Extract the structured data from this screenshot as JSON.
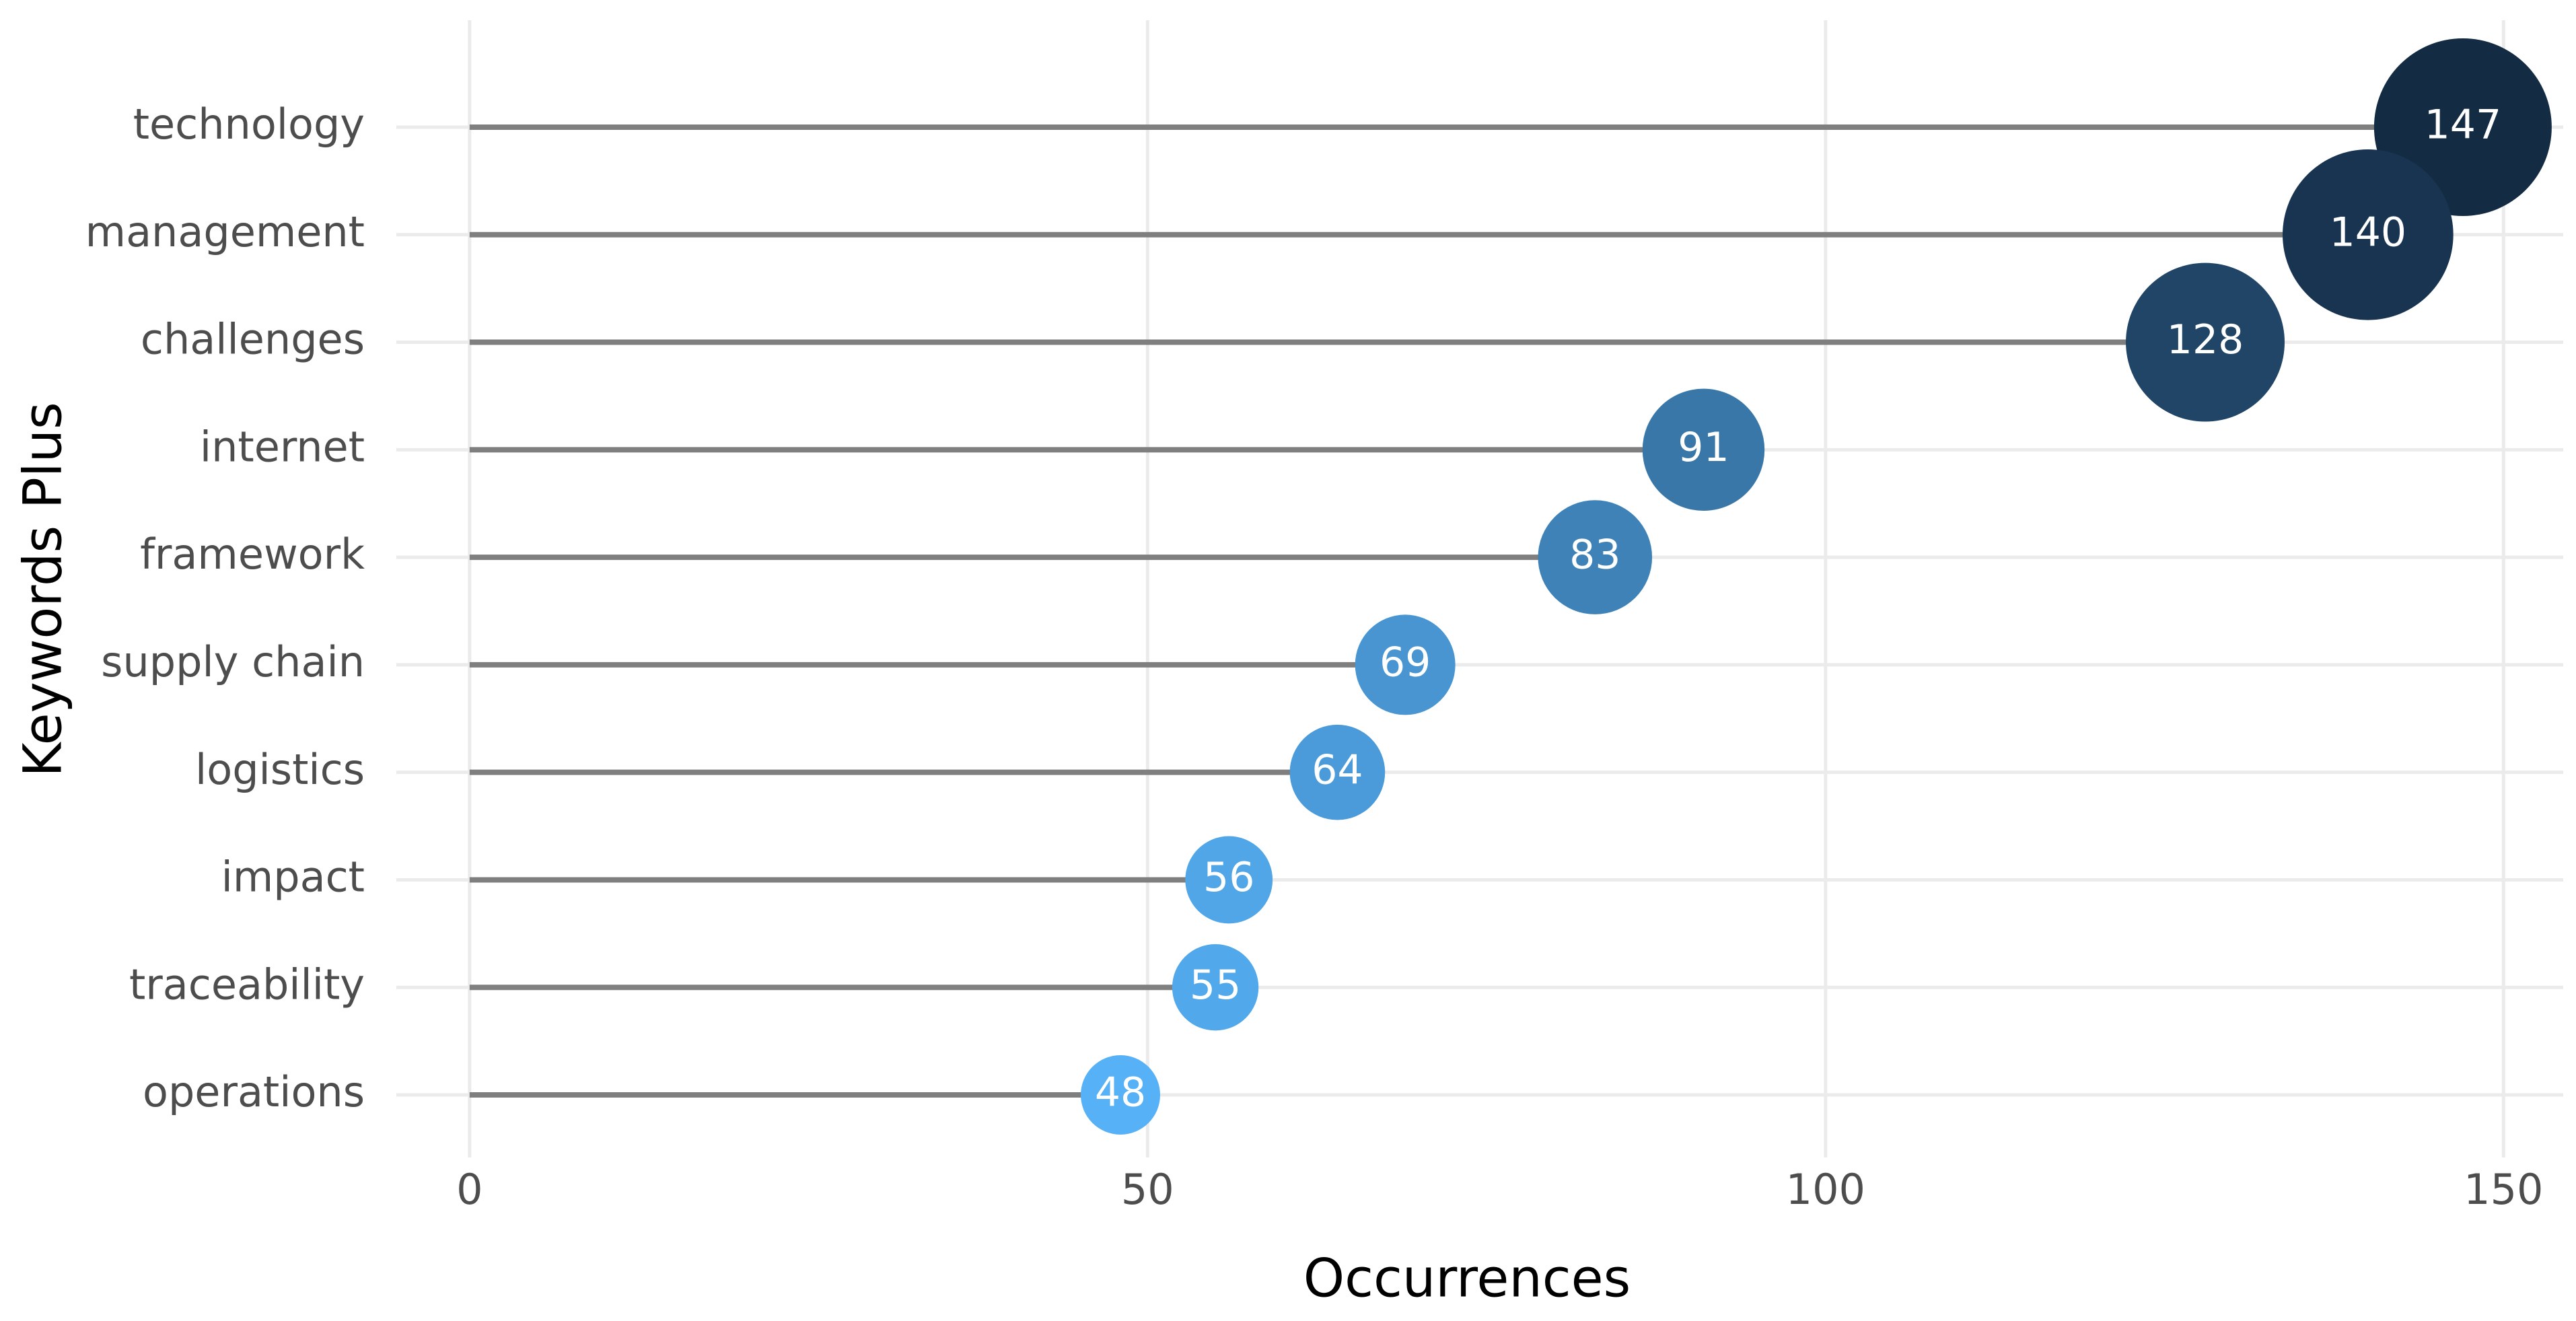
{
  "chart_data": {
    "type": "lollipop",
    "x_label": "Occurrences",
    "y_label": "Keywords Plus",
    "categories": [
      "technology",
      "management",
      "challenges",
      "internet",
      "framework",
      "supply chain",
      "logistics",
      "impact",
      "traceability",
      "operations"
    ],
    "values": [
      147,
      140,
      128,
      91,
      83,
      69,
      64,
      56,
      55,
      48
    ],
    "xlim": [
      -5.4,
      154.4
    ],
    "xticks": [
      0,
      50,
      100,
      150
    ],
    "grid": true,
    "stem_color": "#7f7f7f",
    "color_low": "#56b1f7",
    "color_high": "#132b43"
  }
}
